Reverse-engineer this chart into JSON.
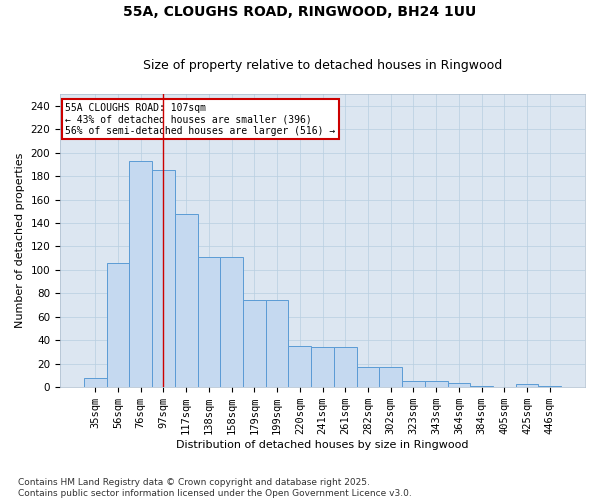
{
  "title": "55A, CLOUGHS ROAD, RINGWOOD, BH24 1UU",
  "subtitle": "Size of property relative to detached houses in Ringwood",
  "xlabel": "Distribution of detached houses by size in Ringwood",
  "ylabel": "Number of detached properties",
  "categories": [
    "35sqm",
    "56sqm",
    "76sqm",
    "97sqm",
    "117sqm",
    "138sqm",
    "158sqm",
    "179sqm",
    "199sqm",
    "220sqm",
    "241sqm",
    "261sqm",
    "282sqm",
    "302sqm",
    "323sqm",
    "343sqm",
    "364sqm",
    "384sqm",
    "405sqm",
    "425sqm",
    "446sqm"
  ],
  "values": [
    8,
    106,
    193,
    185,
    148,
    111,
    111,
    74,
    74,
    35,
    34,
    34,
    17,
    17,
    5,
    5,
    4,
    1,
    0,
    3,
    1
  ],
  "bar_color": "#c5d9f0",
  "bar_edge_color": "#5b9bd5",
  "background_color": "#dce6f1",
  "vline_index": 3,
  "vline_color": "#cc0000",
  "annotation_line1": "55A CLOUGHS ROAD: 107sqm",
  "annotation_line2": "← 43% of detached houses are smaller (396)",
  "annotation_line3": "56% of semi-detached houses are larger (516) →",
  "annotation_box_color": "#cc0000",
  "annotation_box_fill": "#ffffff",
  "ylim": [
    0,
    250
  ],
  "yticks": [
    0,
    20,
    40,
    60,
    80,
    100,
    120,
    140,
    160,
    180,
    200,
    220,
    240
  ],
  "footer": "Contains HM Land Registry data © Crown copyright and database right 2025.\nContains public sector information licensed under the Open Government Licence v3.0.",
  "title_fontsize": 10,
  "subtitle_fontsize": 9,
  "xlabel_fontsize": 8,
  "ylabel_fontsize": 8,
  "tick_fontsize": 7.5,
  "footer_fontsize": 6.5
}
